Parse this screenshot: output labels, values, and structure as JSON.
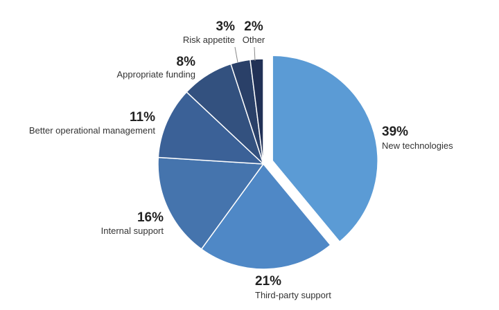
{
  "chart_data": {
    "type": "pie",
    "title": "",
    "start_angle_deg": 0,
    "direction": "clockwise",
    "slices": [
      {
        "label": "New technologies",
        "value": 39,
        "value_label": "39%",
        "color": "#5b9bd5",
        "exploded": true
      },
      {
        "label": "Third-party support",
        "value": 21,
        "value_label": "21%",
        "color": "#4f88c6"
      },
      {
        "label": "Internal support",
        "value": 16,
        "value_label": "16%",
        "color": "#4574ad"
      },
      {
        "label": "Better operational management",
        "value": 11,
        "value_label": "11%",
        "color": "#3b6197"
      },
      {
        "label": "Appropriate funding",
        "value": 8,
        "value_label": "8%",
        "color": "#33517f"
      },
      {
        "label": "Risk appetite",
        "value": 3,
        "value_label": "3%",
        "color": "#2a4068"
      },
      {
        "label": "Other",
        "value": 2,
        "value_label": "2%",
        "color": "#213156"
      }
    ]
  }
}
